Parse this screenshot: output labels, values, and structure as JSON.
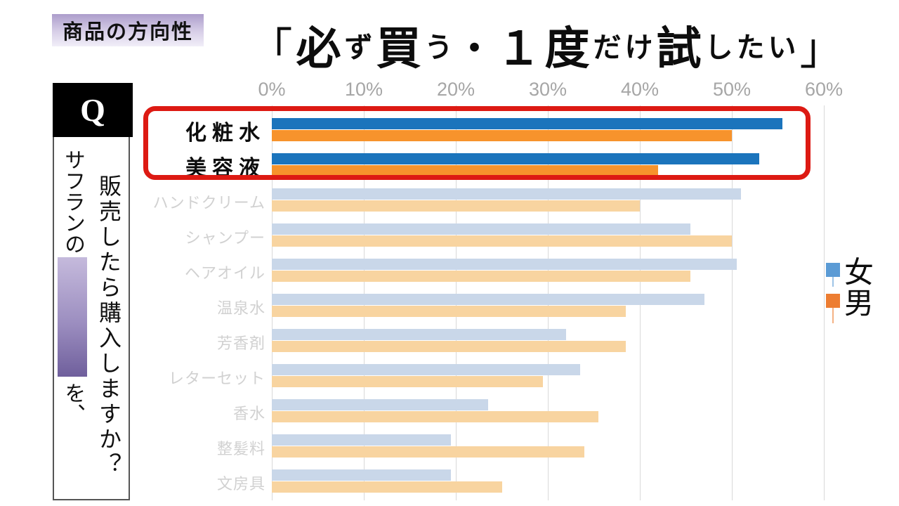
{
  "tag": {
    "label": "商品の方向性"
  },
  "title": {
    "full": "「必ず買う・１度だけ試したい」",
    "segments": [
      {
        "text": "「",
        "size": "bracket"
      },
      {
        "text": "必",
        "size": "large"
      },
      {
        "text": "ず",
        "size": "small"
      },
      {
        "text": "買",
        "size": "large"
      },
      {
        "text": "う",
        "size": "small"
      },
      {
        "text": "・",
        "size": "medium"
      },
      {
        "text": "１度",
        "size": "large"
      },
      {
        "text": "だけ",
        "size": "small"
      },
      {
        "text": "試",
        "size": "large"
      },
      {
        "text": "したい",
        "size": "small"
      },
      {
        "text": "」",
        "size": "bracket"
      }
    ]
  },
  "sidebar": {
    "q_label": "Q",
    "line1_before_box": "サフランの",
    "line1_after_box": "を、",
    "line2": "販売したら購入しますか？",
    "hidden_box_gradient": [
      "#C5BADC",
      "#6F5F9C"
    ]
  },
  "chart_data": {
    "type": "bar",
    "orientation": "horizontal",
    "title": "「必ず買う・１度だけ試したい」",
    "categories": [
      "化粧水",
      "美容液",
      "ハンドクリーム",
      "シャンプー",
      "ヘアオイル",
      "温泉水",
      "芳香剤",
      "レターセット",
      "香水",
      "整髪料",
      "文房具"
    ],
    "series": [
      {
        "name": "女",
        "color": "#1B74BC",
        "muted_color": "#C9D7E9",
        "values": [
          55.5,
          53,
          51,
          45.5,
          50.5,
          47,
          32,
          33.5,
          23.5,
          19.5,
          19.5
        ]
      },
      {
        "name": "男",
        "color": "#F7932C",
        "muted_color": "#F8D4A0",
        "values": [
          50,
          42,
          40,
          50,
          45.5,
          38.5,
          38.5,
          29.5,
          35.5,
          34,
          25
        ]
      }
    ],
    "highlighted_categories": [
      "化粧水",
      "美容液"
    ],
    "x_ticks": [
      "0%",
      "10%",
      "20%",
      "30%",
      "40%",
      "50%",
      "60%"
    ],
    "xlim": [
      0,
      60
    ],
    "xlabel": "",
    "ylabel": "",
    "grid": true,
    "legend_position": "right",
    "highlight_box_color": "#DD1A13"
  },
  "legend": {
    "items": [
      {
        "label": "女",
        "color": "#5B9BD5",
        "stem_color": "#9DC3E6"
      },
      {
        "label": "男",
        "color": "#ED7D31",
        "stem_color": "#F4B183"
      }
    ]
  }
}
